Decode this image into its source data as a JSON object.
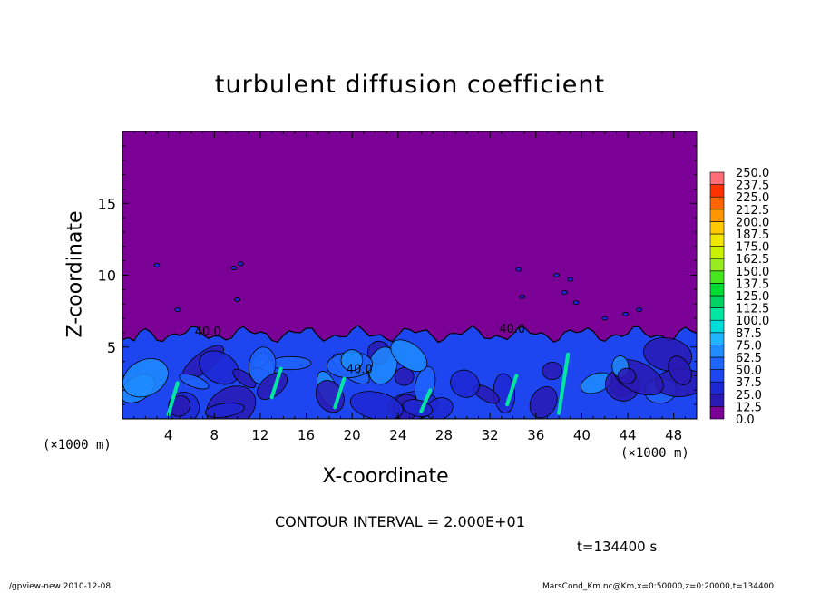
{
  "chart_data": {
    "type": "heatmap",
    "title": "turbulent diffusion coefficient",
    "xlabel": "X-coordinate",
    "ylabel": "Z-coordinate",
    "x_unit": "(×1000 m)",
    "xlim": [
      0,
      50
    ],
    "ylim": [
      0,
      20
    ],
    "x_ticks": [
      "4",
      "8",
      "12",
      "16",
      "20",
      "24",
      "28",
      "32",
      "36",
      "40",
      "44",
      "48"
    ],
    "y_ticks": [
      "5",
      "10",
      "15"
    ],
    "contour_labels": [
      "40.0",
      "40.0",
      "40.0"
    ],
    "colorbar": {
      "levels": [
        "0.0",
        "12.5",
        "25.0",
        "37.5",
        "50.0",
        "62.5",
        "75.0",
        "87.5",
        "100.0",
        "112.5",
        "125.0",
        "137.5",
        "150.0",
        "162.5",
        "175.0",
        "187.5",
        "200.0",
        "212.5",
        "225.0",
        "237.5",
        "250.0"
      ],
      "colors": [
        "#7a0096",
        "#2a1ab4",
        "#1e28d2",
        "#1e46f0",
        "#1e64ff",
        "#1e8cff",
        "#1eb4ff",
        "#00dcdc",
        "#00e6a0",
        "#00d264",
        "#00dc32",
        "#46e61e",
        "#96ec1e",
        "#c8f000",
        "#f0e600",
        "#ffc800",
        "#ff9600",
        "#ff6400",
        "#ff3200",
        "#ff6e78"
      ]
    },
    "turbulent_layer_top_km": 6.5,
    "background_value": "0.0"
  },
  "contour_interval": "CONTOUR INTERVAL = 2.000E+01",
  "time_label": "t=134400 s",
  "footer_left": "./gpview-new  2010-12-08",
  "footer_right": "MarsCond_Km.nc@Km,x=0:50000,z=0:20000,t=134400"
}
